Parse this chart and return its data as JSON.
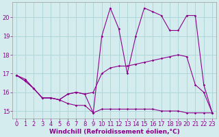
{
  "background_color": "#d4ecee",
  "line_color": "#8b008b",
  "grid_color": "#aed6d8",
  "xlabel": "Windchill (Refroidissement éolien,°C)",
  "xlabel_fontsize": 6.5,
  "tick_fontsize": 6,
  "xlim": [
    -0.5,
    23.5
  ],
  "ylim": [
    14.6,
    20.8
  ],
  "yticks": [
    15,
    16,
    17,
    18,
    19,
    20
  ],
  "xticks": [
    0,
    1,
    2,
    3,
    4,
    5,
    6,
    7,
    8,
    9,
    10,
    11,
    12,
    13,
    14,
    15,
    16,
    17,
    18,
    19,
    20,
    21,
    22,
    23
  ],
  "series1_x": [
    0,
    1,
    2,
    3,
    4,
    5,
    6,
    7,
    8,
    9,
    10,
    11,
    12,
    13,
    14,
    15,
    16,
    17,
    18,
    19,
    20,
    21,
    22,
    23
  ],
  "series1_y": [
    16.9,
    16.7,
    16.2,
    15.7,
    15.7,
    15.6,
    15.4,
    15.3,
    15.3,
    14.9,
    15.1,
    15.1,
    15.1,
    15.1,
    15.1,
    15.1,
    15.1,
    15.0,
    15.0,
    15.0,
    14.9,
    14.9,
    14.9,
    14.9
  ],
  "series2_x": [
    0,
    1,
    2,
    3,
    4,
    5,
    6,
    7,
    8,
    9,
    10,
    11,
    12,
    13,
    14,
    15,
    16,
    17,
    18,
    19,
    20,
    21,
    22,
    23
  ],
  "series2_y": [
    16.9,
    16.6,
    16.2,
    15.7,
    15.7,
    15.6,
    15.9,
    16.0,
    15.9,
    16.0,
    17.0,
    17.3,
    17.4,
    17.4,
    17.5,
    17.6,
    17.7,
    17.8,
    17.9,
    18.0,
    17.9,
    16.4,
    16.0,
    14.9
  ],
  "series3_x": [
    0,
    1,
    2,
    3,
    4,
    5,
    6,
    7,
    8,
    9,
    10,
    11,
    12,
    13,
    14,
    15,
    16,
    17,
    18,
    19,
    20,
    21,
    22,
    23
  ],
  "series3_y": [
    16.9,
    16.6,
    16.2,
    15.7,
    15.7,
    15.6,
    15.9,
    16.0,
    15.9,
    14.9,
    19.0,
    20.5,
    19.4,
    17.0,
    19.0,
    20.5,
    20.3,
    20.1,
    19.3,
    19.3,
    20.1,
    20.1,
    16.4,
    14.9
  ]
}
